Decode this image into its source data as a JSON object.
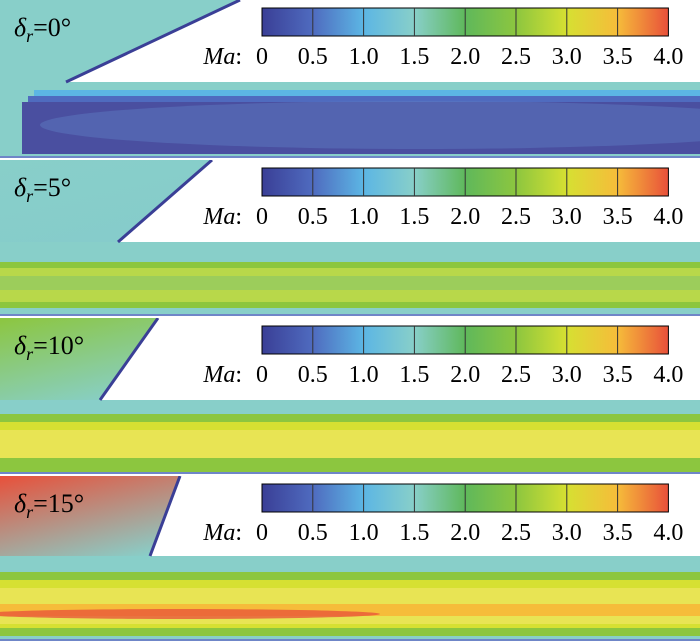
{
  "colorbar": {
    "variable": "Ma",
    "separator": ":",
    "ticks": [
      "0",
      "0.5",
      "1.0",
      "1.5",
      "2.0",
      "2.5",
      "3.0",
      "3.5",
      "4.0"
    ],
    "colors": [
      "#3a3f96",
      "#4f6bbf",
      "#5cb6e4",
      "#88cfc9",
      "#5fb85b",
      "#8cc63f",
      "#d6e032",
      "#f6bc3a",
      "#e8503a"
    ]
  },
  "panels": [
    {
      "symbol": "δ",
      "subscript": "r",
      "value": "=0°",
      "angle_deg": 0
    },
    {
      "symbol": "δ",
      "subscript": "r",
      "value": "=5°",
      "angle_deg": 5
    },
    {
      "symbol": "δ",
      "subscript": "r",
      "value": "=10°",
      "angle_deg": 10
    },
    {
      "symbol": "δ",
      "subscript": "r",
      "value": "=15°",
      "angle_deg": 15
    }
  ]
}
